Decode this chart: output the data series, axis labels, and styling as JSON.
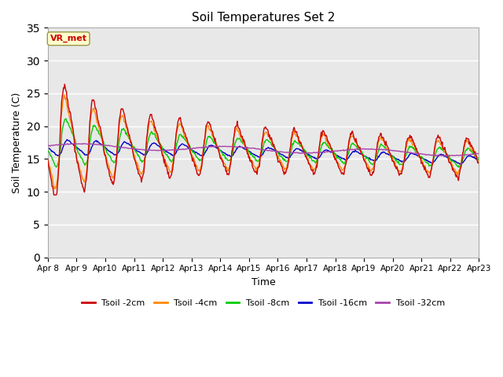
{
  "title": "Soil Temperatures Set 2",
  "xlabel": "Time",
  "ylabel": "Soil Temperature (C)",
  "ylim": [
    0,
    35
  ],
  "yticks": [
    0,
    5,
    10,
    15,
    20,
    25,
    30,
    35
  ],
  "x_labels": [
    "Apr 8",
    "Apr 9",
    "Apr 10",
    "Apr 11",
    "Apr 12",
    "Apr 13",
    "Apr 14",
    "Apr 15",
    "Apr 16",
    "Apr 17",
    "Apr 18",
    "Apr 19",
    "Apr 20",
    "Apr 21",
    "Apr 22",
    "Apr 23"
  ],
  "colors": {
    "Tsoil -2cm": "#cc0000",
    "Tsoil -4cm": "#ff8800",
    "Tsoil -8cm": "#00cc00",
    "Tsoil -16cm": "#0000cc",
    "Tsoil -32cm": "#aa44aa"
  },
  "annotation_text": "VR_met",
  "annotation_color": "#cc0000",
  "annotation_bg": "#ffffcc",
  "background_color": "#ffffff",
  "plot_bg_color": "#e8e8e8",
  "grid_color": "#ffffff",
  "figsize": [
    6.4,
    4.8
  ],
  "dpi": 100
}
